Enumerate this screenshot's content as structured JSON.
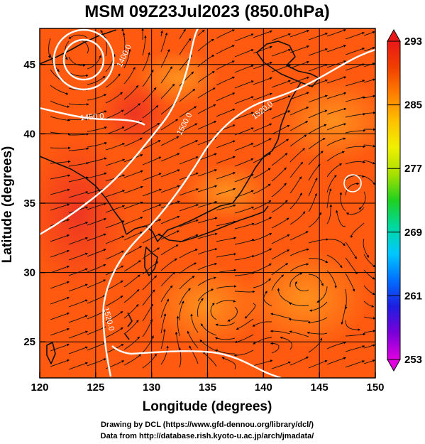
{
  "title": "MSM 09Z23Jul2023 (850.0hPa)",
  "x_axis": {
    "label": "Longitude (degrees)",
    "range": [
      120,
      150
    ],
    "ticks": [
      "120",
      "125",
      "130",
      "135",
      "140",
      "145",
      "150"
    ]
  },
  "y_axis": {
    "label": "Latitude  (degrees)",
    "range": [
      22.4,
      47.6
    ],
    "ticks": [
      "25",
      "30",
      "35",
      "40",
      "45"
    ]
  },
  "colorbar": {
    "range": [
      253,
      293
    ],
    "ticks": [
      "293",
      "285",
      "277",
      "269",
      "261",
      "253"
    ],
    "colors": [
      "#e000e0",
      "#7a00d8",
      "#1e1ee0",
      "#0070ff",
      "#00c8ff",
      "#00d8a0",
      "#20d020",
      "#a8e000",
      "#f0f000",
      "#ffc000",
      "#ff8000",
      "#f04000",
      "#e81818"
    ]
  },
  "field_colors": {
    "warm": "#ff5a10",
    "hot": "#f03020",
    "mid": "#ff8a1a",
    "outline": "#f03c3c"
  },
  "contours": [
    {
      "label": "1400.0",
      "level": 1400
    },
    {
      "label": "1450.0",
      "level": 1450
    },
    {
      "label": "1500.0",
      "level": 1500
    },
    {
      "label": "1520.0",
      "level": 1520
    }
  ],
  "credits": {
    "line1": "Drawing by DCL (https://www.gfd-dennou.org/library/dcl/)",
    "line2": "Data from http://database.rish.kyoto-u.ac.jp/arch/jmadata/"
  }
}
